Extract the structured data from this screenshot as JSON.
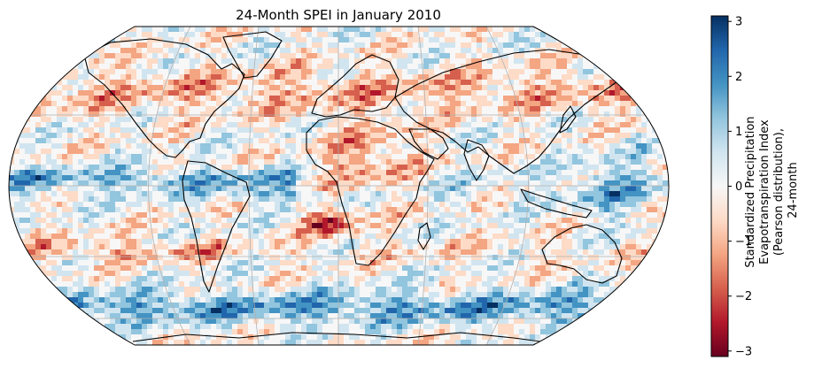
{
  "title": "24-Month SPEI in January 2010",
  "colorbar": {
    "label_lines": [
      "Standardized Precipitation",
      "Evapotranspiration Index",
      "(Pearson distribution),",
      "24-month"
    ],
    "ticks": [
      "3",
      "2",
      "1",
      "0",
      "−1",
      "−2",
      "−3"
    ],
    "range": [
      -3.1,
      3.1
    ],
    "colormap": "RdBu",
    "colors": [
      "#67001f",
      "#b2182b",
      "#d6604d",
      "#f4a582",
      "#fddbc7",
      "#f7f7f7",
      "#d1e5f0",
      "#92c5de",
      "#4393c3",
      "#2166ac",
      "#053061"
    ]
  },
  "map": {
    "projection": "Robinson",
    "variable": "SPEI-24",
    "gridlines": true,
    "coastlines": true
  }
}
